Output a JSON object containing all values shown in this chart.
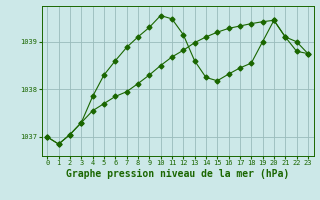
{
  "title": "Graphe pression niveau de la mer (hPa)",
  "background_color": "#cce8e8",
  "plot_bg_color": "#cce8e8",
  "line_color": "#1a6600",
  "grid_color": "#99bbbb",
  "xlim": [
    -0.5,
    23.5
  ],
  "ylim": [
    1036.6,
    1039.75
  ],
  "yticks": [
    1037,
    1038,
    1039
  ],
  "xticks": [
    0,
    1,
    2,
    3,
    4,
    5,
    6,
    7,
    8,
    9,
    10,
    11,
    12,
    13,
    14,
    15,
    16,
    17,
    18,
    19,
    20,
    21,
    22,
    23
  ],
  "line1_x": [
    0,
    1,
    2,
    3,
    4,
    5,
    6,
    7,
    8,
    9,
    10,
    11,
    12,
    13,
    14,
    15,
    16,
    17,
    18,
    19,
    20,
    21,
    22,
    23
  ],
  "line1_y": [
    1037.0,
    1036.85,
    1037.05,
    1037.3,
    1037.55,
    1037.7,
    1037.85,
    1037.95,
    1038.12,
    1038.3,
    1038.5,
    1038.68,
    1038.82,
    1038.98,
    1039.1,
    1039.2,
    1039.28,
    1039.33,
    1039.38,
    1039.42,
    1039.45,
    1039.1,
    1039.0,
    1038.75
  ],
  "line2_x": [
    0,
    1,
    2,
    3,
    4,
    5,
    6,
    7,
    8,
    9,
    10,
    11,
    12,
    13,
    14,
    15,
    16,
    17,
    18,
    19,
    20,
    21,
    22,
    23
  ],
  "line2_y": [
    1037.0,
    1036.85,
    1037.05,
    1037.3,
    1037.85,
    1038.3,
    1038.6,
    1038.88,
    1039.1,
    1039.3,
    1039.55,
    1039.48,
    1039.15,
    1038.6,
    1038.25,
    1038.18,
    1038.32,
    1038.45,
    1038.55,
    1039.0,
    1039.45,
    1039.1,
    1038.8,
    1038.75
  ],
  "title_fontsize": 7,
  "tick_fontsize": 5,
  "marker_size": 2.5
}
